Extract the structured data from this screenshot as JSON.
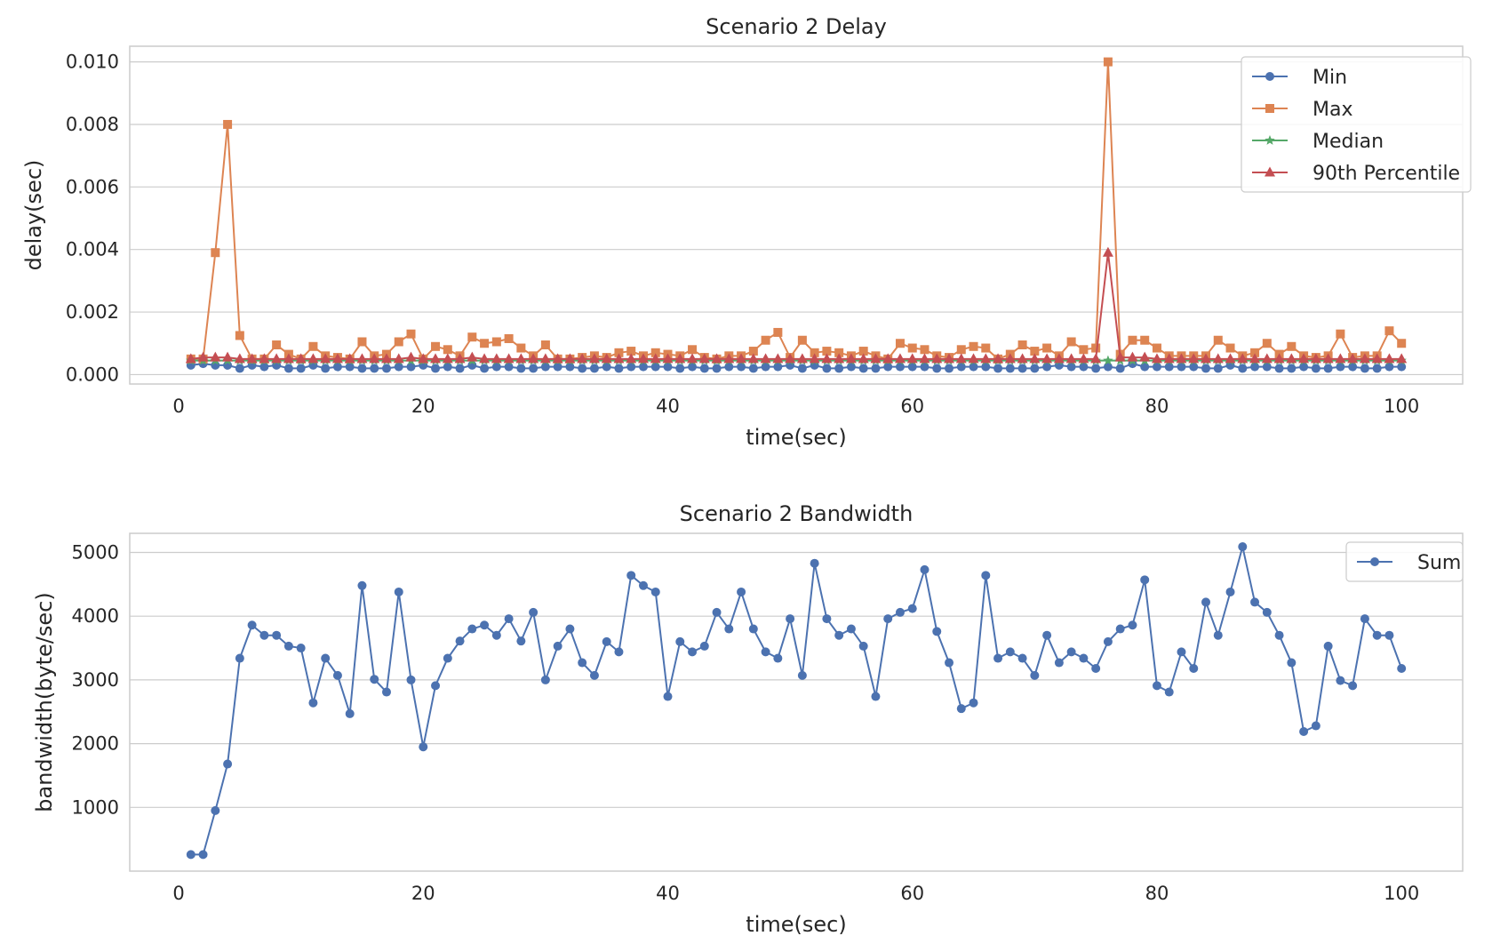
{
  "chart_data": [
    {
      "type": "line",
      "title": "Scenario 2 Delay",
      "xlabel": "time(sec)",
      "ylabel": "delay(sec)",
      "xlim": [
        -4,
        105
      ],
      "ylim": [
        -0.0003,
        0.0105
      ],
      "xticks": [
        0,
        20,
        40,
        60,
        80,
        100
      ],
      "xtick_labels": [
        "0",
        "20",
        "40",
        "60",
        "80",
        "100"
      ],
      "yticks": [
        0.0,
        0.002,
        0.004,
        0.006,
        0.008,
        0.01
      ],
      "ytick_labels": [
        "0.000",
        "0.002",
        "0.004",
        "0.006",
        "0.008",
        "0.010"
      ],
      "grid": true,
      "legend_position": "top-right",
      "x": [
        1,
        2,
        3,
        4,
        5,
        6,
        7,
        8,
        9,
        10,
        11,
        12,
        13,
        14,
        15,
        16,
        17,
        18,
        19,
        20,
        21,
        22,
        23,
        24,
        25,
        26,
        27,
        28,
        29,
        30,
        31,
        32,
        33,
        34,
        35,
        36,
        37,
        38,
        39,
        40,
        41,
        42,
        43,
        44,
        45,
        46,
        47,
        48,
        49,
        50,
        51,
        52,
        53,
        54,
        55,
        56,
        57,
        58,
        59,
        60,
        61,
        62,
        63,
        64,
        65,
        66,
        67,
        68,
        69,
        70,
        71,
        72,
        73,
        74,
        75,
        76,
        77,
        78,
        79,
        80,
        81,
        82,
        83,
        84,
        85,
        86,
        87,
        88,
        89,
        90,
        91,
        92,
        93,
        94,
        95,
        96,
        97,
        98,
        99,
        100
      ],
      "series": [
        {
          "name": "Min",
          "color": "#4c72b0",
          "marker": "circle",
          "values": [
            0.0003,
            0.00035,
            0.0003,
            0.0003,
            0.0002,
            0.0003,
            0.00025,
            0.0003,
            0.0002,
            0.0002,
            0.0003,
            0.0002,
            0.00025,
            0.00025,
            0.0002,
            0.0002,
            0.0002,
            0.00025,
            0.00025,
            0.0003,
            0.0002,
            0.00025,
            0.0002,
            0.0003,
            0.0002,
            0.00025,
            0.00025,
            0.0002,
            0.0002,
            0.00025,
            0.00025,
            0.00025,
            0.0002,
            0.0002,
            0.00025,
            0.0002,
            0.00025,
            0.00025,
            0.00025,
            0.00025,
            0.0002,
            0.00025,
            0.0002,
            0.0002,
            0.00025,
            0.00025,
            0.0002,
            0.00025,
            0.00025,
            0.0003,
            0.0002,
            0.0003,
            0.0002,
            0.0002,
            0.00025,
            0.0002,
            0.0002,
            0.00025,
            0.00025,
            0.00025,
            0.00025,
            0.0002,
            0.0002,
            0.00025,
            0.00025,
            0.00025,
            0.0002,
            0.0002,
            0.0002,
            0.0002,
            0.00025,
            0.0003,
            0.00025,
            0.00025,
            0.0002,
            0.00025,
            0.0002,
            0.00035,
            0.00025,
            0.00025,
            0.00025,
            0.00025,
            0.00025,
            0.0002,
            0.0002,
            0.0003,
            0.0002,
            0.00025,
            0.00025,
            0.0002,
            0.0002,
            0.00025,
            0.0002,
            0.0002,
            0.00025,
            0.00025,
            0.0002,
            0.0002,
            0.00025,
            0.00025
          ]
        },
        {
          "name": "Max",
          "color": "#dd8452",
          "marker": "square",
          "values": [
            0.0005,
            0.0005,
            0.0039,
            0.008,
            0.00125,
            0.0005,
            0.0005,
            0.00095,
            0.00065,
            0.0005,
            0.0009,
            0.0006,
            0.00055,
            0.0005,
            0.00105,
            0.0006,
            0.00065,
            0.00105,
            0.0013,
            0.0005,
            0.0009,
            0.0008,
            0.0006,
            0.0012,
            0.001,
            0.00105,
            0.00115,
            0.00085,
            0.0006,
            0.00095,
            0.0005,
            0.0005,
            0.00055,
            0.0006,
            0.00055,
            0.0007,
            0.00075,
            0.0006,
            0.0007,
            0.00065,
            0.0006,
            0.0008,
            0.00055,
            0.0005,
            0.0006,
            0.0006,
            0.00075,
            0.0011,
            0.00135,
            0.00055,
            0.0011,
            0.0007,
            0.00075,
            0.0007,
            0.0006,
            0.00075,
            0.0006,
            0.0005,
            0.001,
            0.00085,
            0.0008,
            0.0006,
            0.00055,
            0.0008,
            0.0009,
            0.00085,
            0.0005,
            0.00065,
            0.00095,
            0.00075,
            0.00085,
            0.0006,
            0.00105,
            0.0008,
            0.00085,
            0.01,
            0.00065,
            0.0011,
            0.0011,
            0.00085,
            0.0006,
            0.0006,
            0.0006,
            0.0006,
            0.0011,
            0.00085,
            0.0006,
            0.0007,
            0.001,
            0.00065,
            0.0009,
            0.0006,
            0.00055,
            0.0006,
            0.0013,
            0.00055,
            0.0006,
            0.0006,
            0.0014,
            0.001
          ]
        },
        {
          "name": "Median",
          "color": "#55a868",
          "marker": "star",
          "values": [
            0.00045,
            0.00045,
            0.00045,
            0.00045,
            0.00045,
            0.00045,
            0.00045,
            0.00045,
            0.00045,
            0.00045,
            0.00045,
            0.00045,
            0.00045,
            0.00045,
            0.00045,
            0.00045,
            0.00045,
            0.00045,
            0.00045,
            0.00045,
            0.00045,
            0.00045,
            0.00045,
            0.00045,
            0.00045,
            0.00045,
            0.00045,
            0.00045,
            0.00045,
            0.00045,
            0.00045,
            0.00045,
            0.00045,
            0.00045,
            0.00045,
            0.00045,
            0.00045,
            0.00045,
            0.00045,
            0.00045,
            0.00045,
            0.00045,
            0.00045,
            0.00045,
            0.00045,
            0.00045,
            0.00045,
            0.00045,
            0.00045,
            0.00045,
            0.00045,
            0.00045,
            0.00045,
            0.00045,
            0.00045,
            0.00045,
            0.00045,
            0.00045,
            0.00045,
            0.00045,
            0.00045,
            0.00045,
            0.00045,
            0.00045,
            0.00045,
            0.00045,
            0.00045,
            0.00045,
            0.00045,
            0.00045,
            0.00045,
            0.00045,
            0.00045,
            0.00045,
            0.00045,
            0.00045,
            0.00045,
            0.00045,
            0.00045,
            0.00045,
            0.00045,
            0.00045,
            0.00045,
            0.00045,
            0.00045,
            0.00045,
            0.00045,
            0.00045,
            0.00045,
            0.00045,
            0.00045,
            0.00045,
            0.00045,
            0.00045,
            0.00045,
            0.00045,
            0.00045,
            0.00045,
            0.00045,
            0.00045
          ]
        },
        {
          "name": "90th Percentile",
          "color": "#c44e52",
          "marker": "triangle",
          "values": [
            0.0005,
            0.00055,
            0.00055,
            0.00055,
            0.0005,
            0.0005,
            0.0005,
            0.0005,
            0.0005,
            0.0005,
            0.0005,
            0.0005,
            0.0005,
            0.0005,
            0.0005,
            0.0005,
            0.0005,
            0.0005,
            0.00055,
            0.0005,
            0.0005,
            0.0005,
            0.0005,
            0.00055,
            0.0005,
            0.0005,
            0.0005,
            0.0005,
            0.0005,
            0.0005,
            0.0005,
            0.0005,
            0.0005,
            0.0005,
            0.0005,
            0.0005,
            0.0005,
            0.0005,
            0.0005,
            0.0005,
            0.0005,
            0.0005,
            0.0005,
            0.0005,
            0.0005,
            0.0005,
            0.0005,
            0.0005,
            0.0005,
            0.0005,
            0.0005,
            0.0005,
            0.0005,
            0.0005,
            0.0005,
            0.0005,
            0.0005,
            0.0005,
            0.0005,
            0.0005,
            0.0005,
            0.0005,
            0.0005,
            0.0005,
            0.0005,
            0.0005,
            0.0005,
            0.0005,
            0.0005,
            0.0005,
            0.0005,
            0.0005,
            0.0005,
            0.0005,
            0.0005,
            0.0039,
            0.00055,
            0.00055,
            0.00055,
            0.0005,
            0.0005,
            0.0005,
            0.0005,
            0.0005,
            0.0005,
            0.0005,
            0.0005,
            0.0005,
            0.0005,
            0.0005,
            0.0005,
            0.0005,
            0.0005,
            0.0005,
            0.0005,
            0.0005,
            0.0005,
            0.0005,
            0.0005,
            0.0005
          ]
        }
      ]
    },
    {
      "type": "line",
      "title": "Scenario 2 Bandwidth",
      "xlabel": "time(sec)",
      "ylabel": "bandwidth(byte/sec)",
      "xlim": [
        -4,
        105
      ],
      "ylim": [
        0,
        5300
      ],
      "xticks": [
        0,
        20,
        40,
        60,
        80,
        100
      ],
      "xtick_labels": [
        "0",
        "20",
        "40",
        "60",
        "80",
        "100"
      ],
      "yticks": [
        1000,
        2000,
        3000,
        4000,
        5000
      ],
      "ytick_labels": [
        "1000",
        "2000",
        "3000",
        "4000",
        "5000"
      ],
      "grid": true,
      "legend_position": "top-right",
      "x": [
        1,
        2,
        3,
        4,
        5,
        6,
        7,
        8,
        9,
        10,
        11,
        12,
        13,
        14,
        15,
        16,
        17,
        18,
        19,
        20,
        21,
        22,
        23,
        24,
        25,
        26,
        27,
        28,
        29,
        30,
        31,
        32,
        33,
        34,
        35,
        36,
        37,
        38,
        39,
        40,
        41,
        42,
        43,
        44,
        45,
        46,
        47,
        48,
        49,
        50,
        51,
        52,
        53,
        54,
        55,
        56,
        57,
        58,
        59,
        60,
        61,
        62,
        63,
        64,
        65,
        66,
        67,
        68,
        69,
        70,
        71,
        72,
        73,
        74,
        75,
        76,
        77,
        78,
        79,
        80,
        81,
        82,
        83,
        84,
        85,
        86,
        87,
        88,
        89,
        90,
        91,
        92,
        93,
        94,
        95,
        96,
        97,
        98,
        99,
        100
      ],
      "series": [
        {
          "name": "Sum",
          "color": "#4c72b0",
          "marker": "circle",
          "values": [
            260,
            260,
            950,
            1680,
            3340,
            3860,
            3700,
            3700,
            3530,
            3500,
            2640,
            3340,
            3070,
            2470,
            4480,
            3010,
            2810,
            4380,
            3000,
            1950,
            2910,
            3340,
            3610,
            3800,
            3860,
            3700,
            3960,
            3610,
            4060,
            3000,
            3530,
            3800,
            3270,
            3070,
            3600,
            3440,
            4640,
            4480,
            4380,
            2740,
            3600,
            3440,
            3530,
            4060,
            3800,
            4380,
            3800,
            3440,
            3340,
            3960,
            3070,
            4830,
            3960,
            3700,
            3800,
            3530,
            2740,
            3960,
            4060,
            4120,
            4730,
            3760,
            3270,
            2550,
            2640,
            4640,
            3340,
            3440,
            3340,
            3070,
            3700,
            3270,
            3440,
            3340,
            3180,
            3600,
            3800,
            3860,
            4570,
            2910,
            2810,
            3440,
            3180,
            4220,
            3700,
            4380,
            5090,
            4220,
            4060,
            3700,
            3270,
            2190,
            2280,
            3530,
            2990,
            2910,
            3960,
            3700,
            3700,
            3180
          ]
        }
      ]
    }
  ]
}
